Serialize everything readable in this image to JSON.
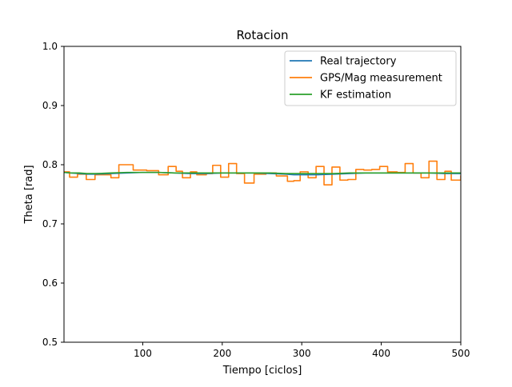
{
  "chart_data": {
    "type": "line",
    "title": "Rotacion",
    "xlabel": "Tiempo [ciclos]",
    "ylabel": "Theta [rad]",
    "xlim": [
      1,
      500
    ],
    "ylim": [
      0.5,
      1.0
    ],
    "xticks": [
      100,
      200,
      300,
      400,
      500
    ],
    "xtick_labels": [
      "100",
      "200",
      "300",
      "400",
      "500"
    ],
    "yticks": [
      0.5,
      0.6,
      0.7,
      0.8,
      0.9,
      1.0
    ],
    "ytick_labels": [
      "0.5",
      "0.6",
      "0.7",
      "0.8",
      "0.9",
      "1.0"
    ],
    "grid": false,
    "legend_position": "top-right",
    "series": [
      {
        "name": "Real trajectory",
        "color": "#1f77b4",
        "x": [
          1,
          10,
          20,
          30,
          40,
          60,
          80,
          100,
          120,
          140,
          160,
          180,
          200,
          220,
          240,
          260,
          280,
          290,
          300,
          320,
          340,
          360,
          380,
          400,
          420,
          440,
          460,
          480,
          500
        ],
        "y": [
          0.787,
          0.786,
          0.785,
          0.784,
          0.784,
          0.785,
          0.786,
          0.787,
          0.787,
          0.786,
          0.785,
          0.785,
          0.786,
          0.786,
          0.786,
          0.785,
          0.784,
          0.783,
          0.783,
          0.783,
          0.784,
          0.785,
          0.786,
          0.786,
          0.786,
          0.786,
          0.786,
          0.785,
          0.785
        ]
      },
      {
        "name": "GPS/Mag measurement",
        "color": "#ff7f0e",
        "x": [
          1,
          8,
          18,
          29,
          40,
          60,
          70,
          88,
          105,
          120,
          132,
          142,
          150,
          160,
          168,
          180,
          188,
          198,
          208,
          218,
          228,
          240,
          255,
          268,
          282,
          290,
          298,
          308,
          318,
          328,
          338,
          348,
          358,
          368,
          378,
          388,
          398,
          408,
          420,
          430,
          440,
          450,
          460,
          470,
          480,
          488,
          500
        ],
        "y": [
          0.788,
          0.779,
          0.784,
          0.775,
          0.783,
          0.778,
          0.8,
          0.791,
          0.79,
          0.783,
          0.797,
          0.789,
          0.778,
          0.788,
          0.783,
          0.785,
          0.799,
          0.779,
          0.802,
          0.785,
          0.769,
          0.784,
          0.786,
          0.781,
          0.772,
          0.773,
          0.788,
          0.778,
          0.797,
          0.766,
          0.796,
          0.774,
          0.775,
          0.792,
          0.791,
          0.792,
          0.797,
          0.788,
          0.787,
          0.802,
          0.786,
          0.778,
          0.806,
          0.775,
          0.789,
          0.774,
          0.782
        ]
      },
      {
        "name": "KF estimation",
        "color": "#2ca02c",
        "x": [
          1,
          10,
          20,
          30,
          40,
          60,
          80,
          100,
          120,
          140,
          160,
          180,
          200,
          220,
          240,
          260,
          280,
          300,
          320,
          340,
          360,
          380,
          400,
          420,
          440,
          460,
          480,
          500
        ],
        "y": [
          0.787,
          0.786,
          0.786,
          0.785,
          0.785,
          0.786,
          0.787,
          0.787,
          0.787,
          0.786,
          0.786,
          0.786,
          0.786,
          0.786,
          0.786,
          0.786,
          0.785,
          0.785,
          0.785,
          0.785,
          0.786,
          0.786,
          0.786,
          0.786,
          0.786,
          0.786,
          0.786,
          0.786
        ]
      }
    ]
  }
}
